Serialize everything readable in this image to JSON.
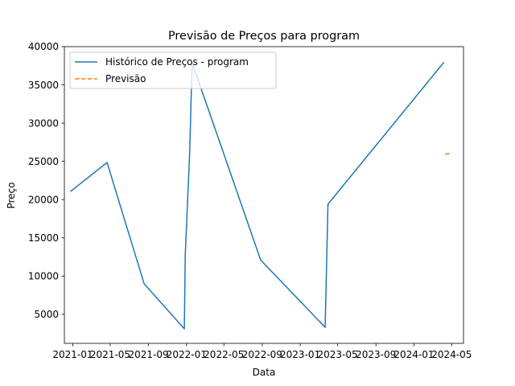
{
  "chart_data": {
    "type": "line",
    "title": "Previsão de Preços para program",
    "xlabel": "Data",
    "ylabel": "Preço",
    "xlim": [
      "2020-12-05",
      "2024-06-08"
    ],
    "ylim": [
      1200,
      40000
    ],
    "x_ticks": [
      {
        "date": "2021-01-01",
        "label": "2021-01"
      },
      {
        "date": "2021-05-01",
        "label": "2021-05"
      },
      {
        "date": "2021-09-01",
        "label": "2021-09"
      },
      {
        "date": "2022-01-01",
        "label": "2022-01"
      },
      {
        "date": "2022-05-01",
        "label": "2022-05"
      },
      {
        "date": "2022-09-01",
        "label": "2022-09"
      },
      {
        "date": "2023-01-01",
        "label": "2023-01"
      },
      {
        "date": "2023-05-01",
        "label": "2023-05"
      },
      {
        "date": "2023-09-01",
        "label": "2023-09"
      },
      {
        "date": "2024-01-01",
        "label": "2024-01"
      },
      {
        "date": "2024-05-01",
        "label": "2024-05"
      }
    ],
    "y_ticks": [
      5000,
      10000,
      15000,
      20000,
      25000,
      30000,
      35000,
      40000
    ],
    "grid": false,
    "legend_position": "top-left",
    "series": [
      {
        "name": "Histórico de Preços - program",
        "color": "#1f77b4",
        "style": "solid",
        "points": [
          {
            "x": "2020-12-26",
            "y": 21100
          },
          {
            "x": "2021-04-21",
            "y": 24850
          },
          {
            "x": "2021-08-18",
            "y": 9000
          },
          {
            "x": "2021-12-25",
            "y": 3100
          },
          {
            "x": "2021-12-28",
            "y": 12800
          },
          {
            "x": "2022-01-11",
            "y": 26000
          },
          {
            "x": "2022-01-19",
            "y": 37900
          },
          {
            "x": "2022-08-27",
            "y": 12100
          },
          {
            "x": "2023-03-22",
            "y": 3300
          },
          {
            "x": "2023-03-31",
            "y": 19400
          },
          {
            "x": "2024-04-05",
            "y": 37900
          }
        ]
      },
      {
        "name": "Previsão",
        "color": "#ff7f0e",
        "style": "dashed",
        "points": [
          {
            "x": "2024-04-10",
            "y": 25900
          },
          {
            "x": "2024-04-28",
            "y": 26100
          }
        ]
      }
    ]
  }
}
